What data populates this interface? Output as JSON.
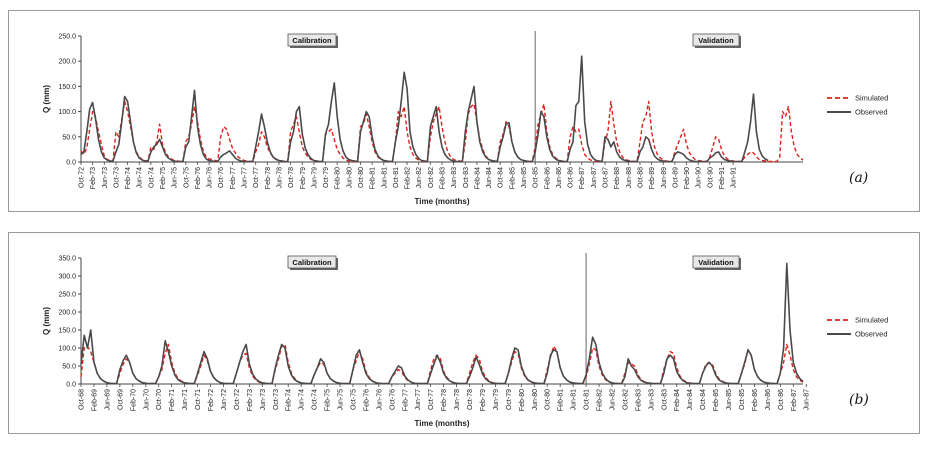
{
  "chart_data": [
    {
      "type": "line",
      "panel_label": "(a)",
      "ylabel": "Q (mm)",
      "xlabel": "Time (months)",
      "ylim": [
        0,
        250
      ],
      "yticks": [
        "0.0",
        "50.0",
        "100.0",
        "150.0",
        "200.0",
        "250.0"
      ],
      "x_tick_labels": [
        "Oct-72",
        "Feb-73",
        "Jun-73",
        "Oct-73",
        "Feb-74",
        "Jun-74",
        "Oct-74",
        "Feb-75",
        "Jun-75",
        "Oct-75",
        "Feb-76",
        "Jun-76",
        "Oct-76",
        "Feb-77",
        "Jun-77",
        "Oct-77",
        "Feb-78",
        "Jun-78",
        "Oct-78",
        "Feb-79",
        "Jun-79",
        "Oct-79",
        "Feb-80",
        "Jun-80",
        "Oct-80",
        "Feb-81",
        "Jun-81",
        "Oct-81",
        "Feb-82",
        "Jun-82",
        "Oct-82",
        "Feb-83",
        "Jun-83",
        "Oct-83",
        "Feb-84",
        "Jun-84",
        "Oct-84",
        "Feb-85",
        "Jun-85",
        "Oct-85",
        "Feb-86",
        "Jun-86",
        "Oct-86",
        "Feb-87",
        "Jun-87",
        "Oct-87",
        "Feb-88",
        "Jun-88",
        "Oct-88",
        "Feb-89",
        "Jun-89",
        "Oct-89",
        "Feb-90",
        "Jun-90",
        "Oct-90",
        "Feb-91",
        "Jun-91"
      ],
      "split_index": 39,
      "period_labels": {
        "calibration": "Calibration",
        "validation": "Validation"
      },
      "grid": false,
      "legend_position": "right",
      "series": [
        {
          "name": "Simulated",
          "color": "#e0201b",
          "dash": "dashed",
          "values": [
            22,
            15,
            28,
            65,
            100,
            88,
            60,
            35,
            12,
            5,
            3,
            2,
            60,
            50,
            85,
            120,
            100,
            70,
            40,
            20,
            10,
            5,
            3,
            2,
            30,
            25,
            40,
            75,
            35,
            20,
            10,
            6,
            3,
            2,
            1,
            1,
            40,
            50,
            75,
            110,
            80,
            45,
            22,
            10,
            6,
            5,
            3,
            2,
            50,
            70,
            65,
            45,
            28,
            18,
            10,
            6,
            3,
            2,
            1,
            1,
            20,
            35,
            60,
            50,
            30,
            18,
            10,
            6,
            3,
            2,
            1,
            1,
            60,
            75,
            90,
            60,
            30,
            18,
            10,
            5,
            3,
            2,
            1,
            1,
            55,
            60,
            65,
            45,
            25,
            15,
            8,
            4,
            2,
            1,
            1,
            1,
            70,
            75,
            95,
            70,
            40,
            20,
            10,
            5,
            3,
            2,
            1,
            1,
            40,
            100,
            90,
            110,
            60,
            30,
            15,
            8,
            4,
            2,
            1,
            1,
            50,
            80,
            95,
            110,
            70,
            40,
            20,
            10,
            5,
            3,
            2,
            1,
            40,
            95,
            110,
            115,
            80,
            45,
            25,
            12,
            6,
            3,
            2,
            1,
            40,
            55,
            80,
            70,
            40,
            20,
            10,
            5,
            3,
            2,
            1,
            1,
            30,
            75,
            95,
            115,
            60,
            30,
            15,
            8,
            4,
            2,
            1,
            1,
            50,
            70,
            60,
            65,
            35,
            15,
            8,
            4,
            2,
            1,
            1,
            1,
            40,
            60,
            120,
            75,
            40,
            20,
            10,
            5,
            3,
            2,
            1,
            1,
            40,
            80,
            90,
            120,
            60,
            30,
            15,
            8,
            4,
            2,
            1,
            1,
            20,
            35,
            50,
            65,
            35,
            18,
            10,
            5,
            3,
            2,
            1,
            1,
            10,
            30,
            50,
            45,
            25,
            12,
            6,
            3,
            2,
            1,
            1,
            1,
            10,
            15,
            20,
            18,
            10,
            5,
            3,
            2,
            1,
            1,
            1,
            1,
            10,
            100,
            90,
            110,
            60,
            30,
            15,
            8,
            4
          ]
        },
        {
          "name": "Observed",
          "color": "#4a4a4a",
          "dash": "solid",
          "values": [
            15,
            20,
            60,
            105,
            118,
            85,
            45,
            20,
            8,
            4,
            2,
            2,
            20,
            35,
            80,
            130,
            120,
            80,
            40,
            18,
            8,
            4,
            2,
            2,
            20,
            30,
            35,
            45,
            30,
            15,
            8,
            4,
            2,
            1,
            1,
            1,
            30,
            40,
            90,
            142,
            70,
            35,
            15,
            6,
            3,
            2,
            1,
            1,
            10,
            15,
            18,
            22,
            15,
            8,
            4,
            2,
            1,
            1,
            1,
            1,
            30,
            60,
            95,
            70,
            40,
            20,
            10,
            5,
            3,
            2,
            1,
            1,
            40,
            60,
            100,
            110,
            55,
            28,
            14,
            7,
            3,
            2,
            1,
            1,
            55,
            75,
            120,
            157,
            90,
            45,
            22,
            10,
            5,
            3,
            2,
            1,
            60,
            80,
            100,
            90,
            50,
            25,
            12,
            6,
            3,
            2,
            1,
            1,
            40,
            70,
            120,
            178,
            145,
            60,
            30,
            15,
            7,
            3,
            2,
            1,
            70,
            90,
            110,
            60,
            30,
            15,
            8,
            4,
            2,
            1,
            1,
            1,
            60,
            100,
            125,
            150,
            80,
            40,
            20,
            10,
            5,
            3,
            2,
            1,
            30,
            50,
            75,
            78,
            40,
            20,
            10,
            5,
            3,
            2,
            1,
            1,
            20,
            55,
            100,
            90,
            50,
            25,
            12,
            6,
            3,
            2,
            1,
            1,
            25,
            40,
            112,
            120,
            210,
            80,
            35,
            15,
            7,
            3,
            2,
            1,
            50,
            45,
            30,
            40,
            20,
            10,
            5,
            3,
            2,
            1,
            1,
            1,
            20,
            30,
            50,
            45,
            25,
            12,
            6,
            3,
            2,
            1,
            1,
            1,
            15,
            20,
            18,
            15,
            8,
            4,
            2,
            1,
            1,
            1,
            1,
            1,
            8,
            12,
            18,
            20,
            10,
            5,
            3,
            2,
            1,
            1,
            1,
            1,
            20,
            40,
            80,
            135,
            60,
            25,
            12,
            6,
            3
          ]
        }
      ]
    },
    {
      "type": "line",
      "panel_label": "(b)",
      "ylabel": "Q (mm)",
      "xlabel": "Time (months)",
      "ylim": [
        0,
        350
      ],
      "yticks": [
        "0.0",
        "50.0",
        "100.0",
        "150.0",
        "200.0",
        "250.0",
        "300.0",
        "350.0"
      ],
      "x_tick_labels": [
        "Oct-68",
        "Feb-69",
        "Jun-69",
        "Oct-69",
        "Feb-70",
        "Jun-70",
        "Oct-70",
        "Feb-71",
        "Jun-71",
        "Oct-71",
        "Feb-72",
        "Jun-72",
        "Oct-72",
        "Feb-73",
        "Jun-73",
        "Oct-73",
        "Feb-74",
        "Jun-74",
        "Oct-74",
        "Feb-75",
        "Jun-75",
        "Oct-75",
        "Feb-76",
        "Jun-76",
        "Oct-76",
        "Feb-77",
        "Jun-77",
        "Oct-77",
        "Feb-78",
        "Jun-78",
        "Oct-78",
        "Feb-79",
        "Jun-79",
        "Oct-79",
        "Feb-80",
        "Jun-80",
        "Oct-80",
        "Feb-81",
        "Jun-81",
        "Oct-81",
        "Feb-82",
        "Jun-82",
        "Oct-82",
        "Feb-83",
        "Jun-83",
        "Oct-83",
        "Feb-84",
        "Jun-84",
        "Oct-84",
        "Feb-85",
        "Jun-85",
        "Oct-85",
        "Feb-86",
        "Jun-86",
        "Oct-86",
        "Feb-87",
        "Jun-87"
      ],
      "split_index": 39,
      "period_labels": {
        "calibration": "Calibration",
        "validation": "Validation"
      },
      "grid": false,
      "legend_position": "right",
      "series": [
        {
          "name": "Simulated",
          "color": "#e0201b",
          "dash": "dashed",
          "values": [
            20,
            100,
            105,
            90,
            60,
            30,
            15,
            8,
            4,
            2,
            1,
            1,
            30,
            55,
            70,
            60,
            30,
            15,
            8,
            4,
            2,
            1,
            1,
            1,
            20,
            40,
            85,
            110,
            60,
            30,
            15,
            8,
            4,
            2,
            1,
            1,
            25,
            50,
            80,
            65,
            35,
            18,
            9,
            4,
            2,
            1,
            1,
            1,
            30,
            60,
            80,
            85,
            45,
            22,
            11,
            5,
            3,
            2,
            1,
            1,
            40,
            70,
            105,
            110,
            60,
            30,
            15,
            7,
            3,
            2,
            1,
            1,
            25,
            45,
            60,
            55,
            30,
            15,
            8,
            4,
            2,
            1,
            1,
            1,
            40,
            65,
            90,
            70,
            35,
            18,
            9,
            4,
            2,
            1,
            1,
            1,
            20,
            30,
            40,
            35,
            18,
            9,
            5,
            2,
            1,
            1,
            1,
            1,
            40,
            70,
            80,
            70,
            35,
            18,
            9,
            4,
            2,
            1,
            1,
            1,
            30,
            60,
            80,
            70,
            35,
            18,
            9,
            4,
            2,
            1,
            1,
            1,
            30,
            60,
            90,
            85,
            45,
            22,
            11,
            5,
            3,
            2,
            1,
            1,
            40,
            75,
            105,
            90,
            45,
            22,
            11,
            5,
            3,
            2,
            1,
            1,
            20,
            55,
            100,
            95,
            50,
            25,
            12,
            6,
            3,
            2,
            1,
            1,
            30,
            60,
            55,
            50,
            25,
            12,
            6,
            3,
            2,
            1,
            1,
            1,
            40,
            70,
            90,
            85,
            45,
            22,
            11,
            5,
            3,
            2,
            1,
            1,
            30,
            55,
            60,
            55,
            30,
            15,
            8,
            4,
            2,
            1,
            1,
            1,
            30,
            55,
            95,
            80,
            40,
            20,
            10,
            5,
            3,
            2,
            1,
            1,
            30,
            60,
            110,
            80,
            40,
            20,
            10,
            5
          ]
        },
        {
          "name": "Observed",
          "color": "#4a4a4a",
          "dash": "solid",
          "values": [
            55,
            135,
            100,
            150,
            60,
            30,
            15,
            8,
            4,
            2,
            1,
            1,
            40,
            65,
            80,
            60,
            30,
            15,
            8,
            4,
            2,
            1,
            1,
            1,
            20,
            50,
            120,
            90,
            50,
            25,
            12,
            6,
            3,
            2,
            1,
            1,
            30,
            60,
            90,
            70,
            35,
            18,
            9,
            4,
            2,
            1,
            1,
            1,
            30,
            60,
            90,
            110,
            55,
            28,
            14,
            7,
            3,
            2,
            1,
            1,
            45,
            80,
            110,
            100,
            50,
            25,
            12,
            6,
            3,
            2,
            1,
            1,
            25,
            45,
            70,
            60,
            30,
            15,
            8,
            4,
            2,
            1,
            1,
            1,
            40,
            80,
            95,
            60,
            30,
            15,
            8,
            4,
            2,
            1,
            1,
            1,
            20,
            35,
            50,
            45,
            22,
            11,
            5,
            2,
            1,
            1,
            1,
            1,
            30,
            55,
            80,
            60,
            30,
            15,
            8,
            4,
            2,
            1,
            1,
            1,
            20,
            45,
            75,
            55,
            28,
            14,
            7,
            3,
            2,
            1,
            1,
            1,
            30,
            70,
            100,
            95,
            50,
            25,
            12,
            6,
            3,
            2,
            1,
            1,
            30,
            80,
            95,
            90,
            45,
            22,
            11,
            5,
            3,
            2,
            1,
            1,
            25,
            70,
            130,
            110,
            60,
            30,
            15,
            7,
            3,
            2,
            1,
            1,
            20,
            70,
            50,
            40,
            20,
            10,
            5,
            3,
            2,
            1,
            1,
            1,
            30,
            70,
            80,
            70,
            35,
            18,
            9,
            4,
            2,
            1,
            1,
            1,
            30,
            50,
            60,
            50,
            25,
            12,
            6,
            3,
            2,
            1,
            1,
            1,
            30,
            60,
            95,
            80,
            40,
            20,
            10,
            5,
            3,
            2,
            1,
            1,
            30,
            100,
            335,
            150,
            60,
            30,
            15,
            7
          ]
        }
      ]
    }
  ]
}
